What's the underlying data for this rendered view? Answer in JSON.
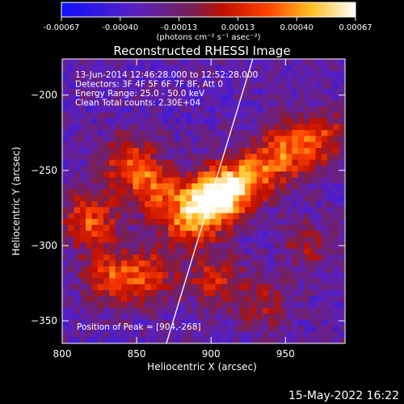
{
  "chart_data": {
    "type": "heatmap",
    "title": "Reconstructed RHESSI Image",
    "xlabel": "Heliocentric X (arcsec)",
    "ylabel": "Heliocentric Y (arcsec)",
    "xlim": [
      800,
      990
    ],
    "ylim": [
      -365,
      -176
    ],
    "xticks": [
      800,
      850,
      900,
      950
    ],
    "yticks": [
      -200,
      -250,
      -300,
      -350
    ],
    "colorbar": {
      "label": "(photons cm⁻² s⁻¹ asec⁻²)",
      "range": [
        -0.00067,
        0.00067
      ],
      "ticks": [
        "-0.00067",
        "-0.00040",
        "-0.00013",
        "0.00013",
        "0.00040",
        "0.00067"
      ],
      "colormap": "blue-purple-red-yellow-white"
    },
    "annotations": [
      "13-Jun-2014 12:46:28.000 to 12:52:28.000",
      "Detectors: 3F 4F 5F 6F 7F 8F, Att 0",
      "Energy Range: 25.0 - 50.0 keV",
      "Clean    Total counts: 2.30E+04"
    ],
    "peak_label": "Position of Peak = [904,-268]",
    "peak": [
      904,
      -268
    ],
    "limb_line": [
      [
        870,
        -365
      ],
      [
        928,
        -176
      ]
    ],
    "sources": [
      {
        "x": 904,
        "y": -268,
        "amp": 1.0
      },
      {
        "x": 885,
        "y": -282,
        "amp": 0.62
      },
      {
        "x": 925,
        "y": -255,
        "amp": 0.6
      },
      {
        "x": 950,
        "y": -238,
        "amp": 0.58
      },
      {
        "x": 975,
        "y": -228,
        "amp": 0.45
      },
      {
        "x": 862,
        "y": -262,
        "amp": 0.48
      },
      {
        "x": 818,
        "y": -283,
        "amp": 0.58
      },
      {
        "x": 832,
        "y": -322,
        "amp": 0.5
      },
      {
        "x": 858,
        "y": -320,
        "amp": 0.45
      },
      {
        "x": 845,
        "y": -245,
        "amp": 0.5
      },
      {
        "x": 903,
        "y": -323,
        "amp": 0.42
      },
      {
        "x": 935,
        "y": -340,
        "amp": 0.3
      },
      {
        "x": 965,
        "y": -300,
        "amp": 0.28
      }
    ]
  },
  "footer_date": "15-May-2022 16:22"
}
